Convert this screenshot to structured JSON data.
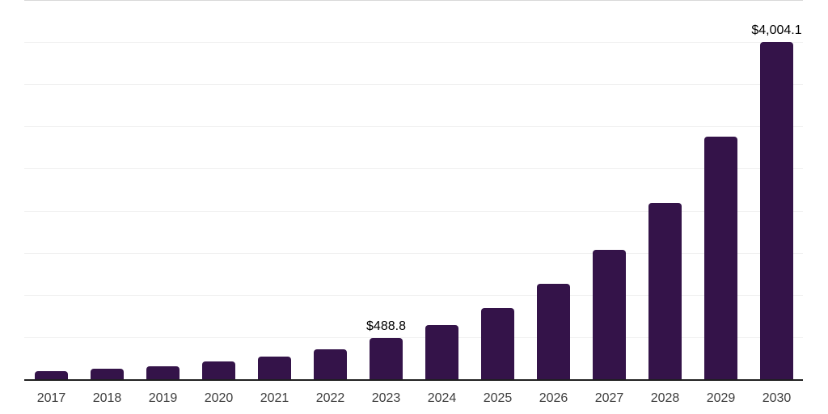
{
  "chart_data": {
    "type": "bar",
    "title": "",
    "xlabel": "",
    "ylabel": "",
    "categories": [
      "2017",
      "2018",
      "2019",
      "2020",
      "2021",
      "2022",
      "2023",
      "2024",
      "2025",
      "2026",
      "2027",
      "2028",
      "2029",
      "2030"
    ],
    "values": [
      95,
      130,
      150,
      210,
      270,
      360,
      488.8,
      640,
      845,
      1130,
      1540,
      2090,
      2880,
      4004.1
    ],
    "value_labels": {
      "2023": "$488.8",
      "2030": "$4,004.1"
    },
    "ylim": [
      0,
      4500
    ],
    "gridline_step": 500,
    "grid": "horizontal",
    "y_tick_labels_visible": false,
    "legend_position": "none",
    "colors": {
      "bar": "#341349",
      "axis_line": "#1f1f1f",
      "gridline": "#f1f1f1",
      "top_gridline": "#d9d9d9",
      "category_label": "#3d3d3d",
      "value_label": "#000000",
      "background": "#ffffff"
    }
  }
}
